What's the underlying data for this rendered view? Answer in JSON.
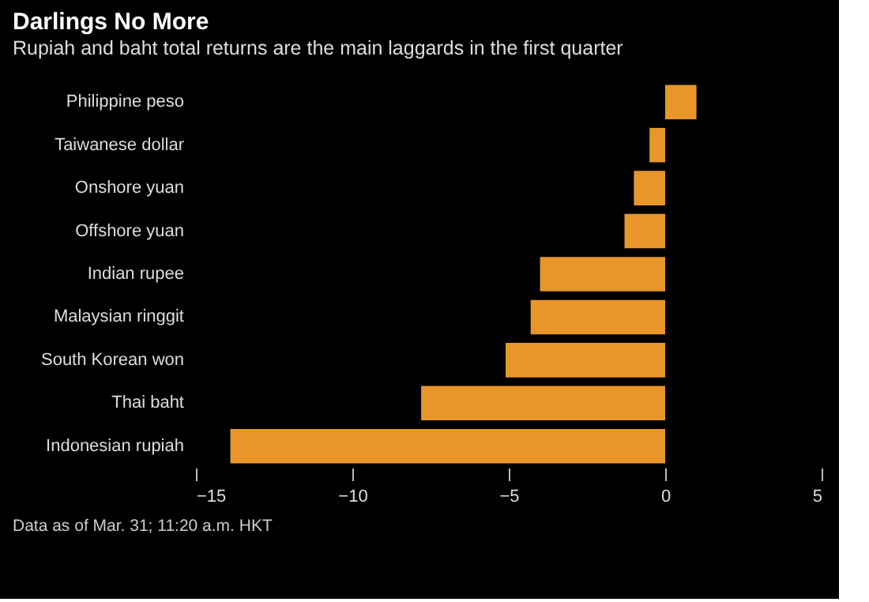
{
  "chart_data": {
    "type": "bar",
    "orientation": "horizontal",
    "title": "Darlings No More",
    "subtitle": "Rupiah and baht total returns are the main laggards in the first quarter",
    "categories": [
      "Philippine peso",
      "Taiwanese dollar",
      "Onshore yuan",
      "Offshore yuan",
      "Indian rupee",
      "Malaysian ringgit",
      "South Korean won",
      "Thai baht",
      "Indonesian rupiah"
    ],
    "values": [
      1.0,
      -0.5,
      -1.0,
      -1.3,
      -4.0,
      -4.3,
      -5.1,
      -7.8,
      -13.9
    ],
    "color": "#e8962a",
    "xlim": [
      -15,
      5
    ],
    "xticks": [
      -15,
      -10,
      -5,
      0,
      5
    ],
    "grid": false,
    "annotations": [
      "Data as of Mar. 31; 11:20 a.m. HKT"
    ]
  }
}
